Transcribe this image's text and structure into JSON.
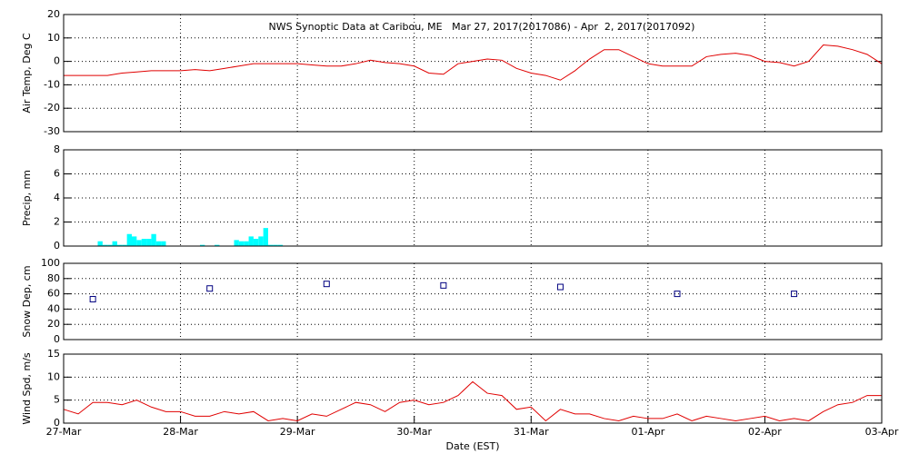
{
  "chart_data": [
    {
      "type": "line",
      "title": "NWS Synoptic Data at Caribou, ME   Mar 27, 2017(2017086) - Apr  2, 2017(2017092)",
      "ylabel": "Air Temp, Deg C",
      "color": "#e00000",
      "grid": true,
      "ylim": [
        -30,
        20
      ],
      "yticks": [
        -30,
        -20,
        -10,
        0,
        10,
        20
      ],
      "x": [
        0,
        3,
        6,
        9,
        12,
        15,
        18,
        21,
        24,
        27,
        30,
        33,
        36,
        39,
        42,
        45,
        48,
        51,
        54,
        57,
        60,
        63,
        66,
        69,
        72,
        75,
        78,
        81,
        84,
        87,
        90,
        93,
        96,
        99,
        102,
        105,
        108,
        111,
        114,
        117,
        120,
        123,
        126,
        129,
        132,
        135,
        138,
        141,
        144,
        147,
        150,
        153,
        156,
        159,
        162,
        165,
        168
      ],
      "values": [
        -6,
        -6,
        -6,
        -6,
        -5,
        -4.5,
        -4,
        -4,
        -4,
        -3.5,
        -4,
        -3,
        -2,
        -1,
        -1,
        -1,
        -1,
        -1.5,
        -2,
        -2,
        -1,
        0.5,
        -0.5,
        -1,
        -2,
        -5,
        -5.5,
        -1,
        0,
        1,
        0.5,
        -3,
        -5,
        -6,
        -8,
        -4,
        1,
        5,
        5,
        2,
        -1,
        -2,
        -2,
        -2,
        2,
        3,
        3.5,
        2.5,
        0,
        -0.5,
        -2,
        0,
        7,
        6.5,
        5,
        3,
        -1
      ]
    },
    {
      "type": "bar",
      "ylabel": "Precip, mm",
      "color": "#00ffff",
      "grid": true,
      "ylim": [
        0,
        8
      ],
      "yticks": [
        0,
        2,
        4,
        6,
        8
      ],
      "x": [
        7,
        8,
        9,
        10,
        11,
        12,
        13,
        14,
        15,
        16,
        17,
        18,
        19,
        20,
        28,
        31,
        35,
        36,
        37,
        38,
        39,
        40,
        41,
        42,
        43,
        44
      ],
      "values": [
        0.4,
        0.1,
        0.1,
        0.4,
        0.1,
        0.1,
        1.0,
        0.8,
        0.5,
        0.6,
        0.6,
        1.0,
        0.4,
        0.4,
        0.1,
        0.1,
        0.5,
        0.4,
        0.4,
        0.8,
        0.6,
        0.8,
        1.5,
        0.1,
        0.1,
        0.1
      ]
    },
    {
      "type": "scatter",
      "ylabel": "Snow Dep, cm",
      "color": "#000080",
      "grid": true,
      "ylim": [
        0,
        100
      ],
      "yticks": [
        0,
        20,
        40,
        60,
        80,
        100
      ],
      "x": [
        6,
        30,
        54,
        78,
        102,
        126,
        150
      ],
      "values": [
        53,
        67,
        73,
        71,
        69,
        60,
        60
      ]
    },
    {
      "type": "line",
      "ylabel": "Wind Spd, m/s",
      "xlabel": "Date (EST)",
      "color": "#e00000",
      "grid": true,
      "ylim": [
        0,
        15
      ],
      "yticks": [
        0,
        5,
        10,
        15
      ],
      "xlim": [
        0,
        168
      ],
      "xticks": [
        {
          "value": 0,
          "label": "27-Mar"
        },
        {
          "value": 24,
          "label": "28-Mar"
        },
        {
          "value": 48,
          "label": "29-Mar"
        },
        {
          "value": 72,
          "label": "30-Mar"
        },
        {
          "value": 96,
          "label": "31-Mar"
        },
        {
          "value": 120,
          "label": "01-Apr"
        },
        {
          "value": 144,
          "label": "02-Apr"
        },
        {
          "value": 168,
          "label": "03-Apr"
        }
      ],
      "x": [
        0,
        3,
        6,
        9,
        12,
        15,
        18,
        21,
        24,
        27,
        30,
        33,
        36,
        39,
        42,
        45,
        48,
        51,
        54,
        57,
        60,
        63,
        66,
        69,
        72,
        75,
        78,
        81,
        84,
        87,
        90,
        93,
        96,
        99,
        102,
        105,
        108,
        111,
        114,
        117,
        120,
        123,
        126,
        129,
        132,
        135,
        138,
        141,
        144,
        147,
        150,
        153,
        156,
        159,
        162,
        165,
        168
      ],
      "values": [
        3,
        2,
        4.5,
        4.5,
        4,
        5,
        3.5,
        2.5,
        2.5,
        1.5,
        1.5,
        2.5,
        2,
        2.5,
        0.5,
        1,
        0.5,
        2,
        1.5,
        3,
        4.5,
        4,
        2.5,
        4.5,
        5,
        4,
        4.5,
        6,
        9,
        6.5,
        6,
        3,
        3.5,
        0.5,
        3,
        2,
        2,
        1,
        0.5,
        1.5,
        1,
        1,
        2,
        0.5,
        1.5,
        1,
        0.5,
        1,
        1.5,
        0.5,
        1,
        0.5,
        2.5,
        4,
        4.5,
        6,
        6
      ]
    }
  ]
}
